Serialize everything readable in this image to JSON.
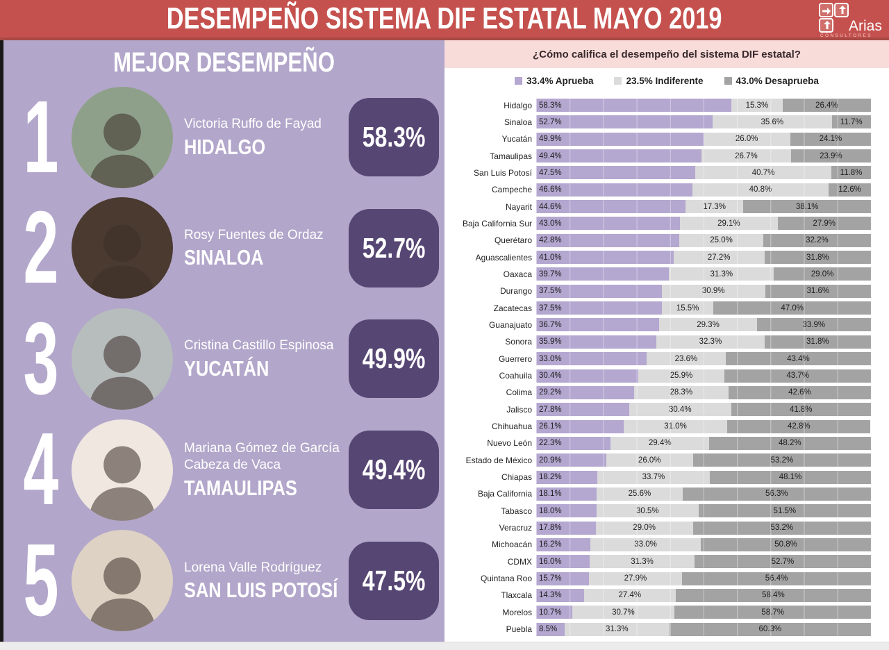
{
  "header": {
    "title": "DESEMPEÑO SISTEMA DIF ESTATAL MAYO 2019",
    "logo": {
      "name": "Arias",
      "subtitle": "Consultores"
    }
  },
  "left_panel": {
    "title": "MEJOR DESEMPEÑO",
    "rankings": [
      {
        "rank": "1",
        "name": "Victoria Ruffo de Fayad",
        "state": "HIDALGO",
        "value": "58.3%",
        "photo_bg": "#8fa08a"
      },
      {
        "rank": "2",
        "name": "Rosy Fuentes de Ordaz",
        "state": "SINALOA",
        "value": "52.7%",
        "photo_bg": "#4a3a30"
      },
      {
        "rank": "3",
        "name": "Cristina Castillo Espinosa",
        "state": "YUCATÁN",
        "value": "49.9%",
        "photo_bg": "#b7bcbd"
      },
      {
        "rank": "4",
        "name": "Mariana Gómez de García Cabeza de Vaca",
        "state": "TAMAULIPAS",
        "value": "49.4%",
        "photo_bg": "#efe7e0"
      },
      {
        "rank": "5",
        "name": "Lorena Valle Rodríguez",
        "state": "SAN LUIS POTOSÍ",
        "value": "47.5%",
        "photo_bg": "#ddd2c4"
      }
    ]
  },
  "right_panel": {
    "question": "¿Cómo califica el desempeño del sistema DIF estatal?"
  },
  "chart_data": {
    "type": "bar",
    "orientation": "horizontal",
    "stacked": true,
    "title": "¿Cómo califica el desempeño del sistema DIF estatal?",
    "xlim": [
      0,
      100
    ],
    "value_suffix": "%",
    "grid": true,
    "legend_position": "top",
    "legend": [
      {
        "label": "33.4% Aprueba",
        "color": "#b4a7d0"
      },
      {
        "label": "23.5% Indiferente",
        "color": "#dbdbdb"
      },
      {
        "label": "43.0% Desaprueba",
        "color": "#a3a3a3"
      }
    ],
    "categories": [
      "Hidalgo",
      "Sinaloa",
      "Yucatán",
      "Tamaulipas",
      "San Luis Potosí",
      "Campeche",
      "Nayarit",
      "Baja California Sur",
      "Querétaro",
      "Aguascalientes",
      "Oaxaca",
      "Durango",
      "Zacatecas",
      "Guanajuato",
      "Sonora",
      "Guerrero",
      "Coahuila",
      "Colima",
      "Jalisco",
      "Chihuahua",
      "Nuevo León",
      "Estado de México",
      "Chiapas",
      "Baja California",
      "Tabasco",
      "Veracruz",
      "Michoacán",
      "CDMX",
      "Quintana Roo",
      "Tlaxcala",
      "Morelos",
      "Puebla"
    ],
    "series": [
      {
        "name": "Aprueba",
        "color": "#b4a7d0",
        "values": [
          58.3,
          52.7,
          49.9,
          49.4,
          47.5,
          46.6,
          44.6,
          43.0,
          42.8,
          41.0,
          39.7,
          37.5,
          37.5,
          36.7,
          35.9,
          33.0,
          30.4,
          29.2,
          27.8,
          26.1,
          22.3,
          20.9,
          18.2,
          18.1,
          18.0,
          17.8,
          16.2,
          16.0,
          15.7,
          14.3,
          10.7,
          8.5
        ]
      },
      {
        "name": "Indiferente",
        "color": "#dbdbdb",
        "values": [
          15.3,
          35.6,
          26.0,
          26.7,
          40.7,
          40.8,
          17.3,
          29.1,
          25.0,
          27.2,
          31.3,
          30.9,
          15.5,
          29.3,
          32.3,
          23.6,
          25.9,
          28.3,
          30.4,
          31.0,
          29.4,
          26.0,
          33.7,
          25.6,
          30.5,
          29.0,
          33.0,
          31.3,
          27.9,
          27.4,
          30.7,
          31.3
        ]
      },
      {
        "name": "Desaprueba",
        "color": "#a3a3a3",
        "values": [
          26.4,
          11.7,
          24.1,
          23.9,
          11.8,
          12.6,
          38.1,
          27.9,
          32.2,
          31.8,
          29.0,
          31.6,
          47.0,
          33.9,
          31.8,
          43.4,
          43.7,
          42.6,
          41.8,
          42.8,
          48.2,
          53.2,
          48.1,
          56.3,
          51.5,
          53.2,
          50.8,
          52.7,
          56.4,
          58.4,
          58.7,
          60.3
        ]
      }
    ]
  },
  "colors": {
    "header_red": "#c5514e",
    "panel_lavender": "#b2a6ca",
    "badge_purple": "#564673",
    "question_pink": "#f8dcda",
    "approve_purple": "#b4a7d0",
    "indifferent_gray": "#dbdbdb",
    "disapprove_gray": "#a3a3a3"
  }
}
